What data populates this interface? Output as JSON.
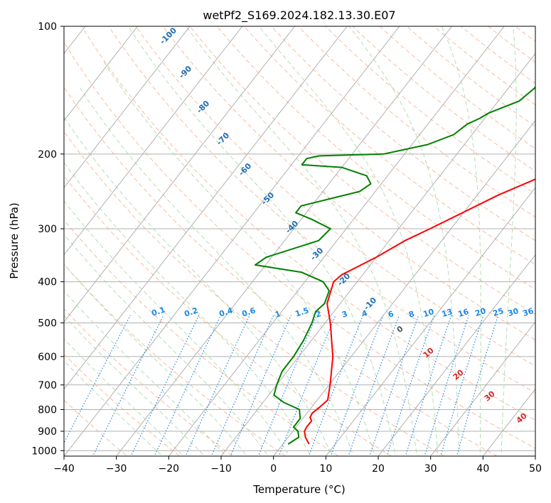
{
  "chart_data": {
    "type": "line",
    "title": "wetPf2_S169.2024.182.13.30.E07",
    "xlabel": "Temperature (°C)",
    "ylabel": "Pressure (hPa)",
    "xlim": [
      -40,
      50
    ],
    "ylim": [
      1030,
      100
    ],
    "y_scale": "log",
    "x_ticks": [
      -40,
      -30,
      -20,
      -10,
      0,
      10,
      20,
      30,
      40,
      50
    ],
    "y_ticks": [
      100,
      200,
      300,
      400,
      500,
      600,
      700,
      800,
      900,
      1000
    ],
    "grid": true,
    "series": [
      {
        "color": "#ff0000",
        "points": [
          {
            "p": 965,
            "t": 5.0
          },
          {
            "p": 930,
            "t": 3.3
          },
          {
            "p": 900,
            "t": 2.2
          },
          {
            "p": 880,
            "t": 2.0
          },
          {
            "p": 850,
            "t": 2.0
          },
          {
            "p": 835,
            "t": 1.2
          },
          {
            "p": 815,
            "t": 1.0
          },
          {
            "p": 790,
            "t": 1.5
          },
          {
            "p": 760,
            "t": 2.0
          },
          {
            "p": 700,
            "t": 0.2
          },
          {
            "p": 600,
            "t": -3.5
          },
          {
            "p": 500,
            "t": -9.0
          },
          {
            "p": 450,
            "t": -12.5
          },
          {
            "p": 400,
            "t": -14.5
          },
          {
            "p": 385,
            "t": -14.0
          },
          {
            "p": 350,
            "t": -10.0
          },
          {
            "p": 320,
            "t": -7.0
          },
          {
            "p": 300,
            "t": -4.0
          },
          {
            "p": 250,
            "t": 4.0
          },
          {
            "p": 220,
            "t": 11.0
          },
          {
            "p": 200,
            "t": 14.0
          },
          {
            "p": 170,
            "t": 19.0
          },
          {
            "p": 150,
            "t": 24.0
          },
          {
            "p": 130,
            "t": 28.0
          },
          {
            "p": 110,
            "t": 33.0
          },
          {
            "p": 100,
            "t": 35.0
          }
        ]
      },
      {
        "color": "#008000",
        "points": [
          {
            "p": 965,
            "t": 1.0
          },
          {
            "p": 930,
            "t": 2.0
          },
          {
            "p": 900,
            "t": 1.0
          },
          {
            "p": 880,
            "t": -0.5
          },
          {
            "p": 840,
            "t": -0.5
          },
          {
            "p": 800,
            "t": -2.0
          },
          {
            "p": 770,
            "t": -6.0
          },
          {
            "p": 740,
            "t": -9.0
          },
          {
            "p": 700,
            "t": -10.0
          },
          {
            "p": 650,
            "t": -11.0
          },
          {
            "p": 600,
            "t": -11.0
          },
          {
            "p": 550,
            "t": -11.5
          },
          {
            "p": 500,
            "t": -12.5
          },
          {
            "p": 470,
            "t": -13.5
          },
          {
            "p": 450,
            "t": -13.0
          },
          {
            "p": 420,
            "t": -14.0
          },
          {
            "p": 400,
            "t": -16.5
          },
          {
            "p": 380,
            "t": -22.0
          },
          {
            "p": 365,
            "t": -32.0
          },
          {
            "p": 350,
            "t": -31.0
          },
          {
            "p": 320,
            "t": -23.5
          },
          {
            "p": 300,
            "t": -23.0
          },
          {
            "p": 285,
            "t": -28.0
          },
          {
            "p": 275,
            "t": -32.0
          },
          {
            "p": 265,
            "t": -32.0
          },
          {
            "p": 245,
            "t": -23.0
          },
          {
            "p": 235,
            "t": -22.0
          },
          {
            "p": 225,
            "t": -24.0
          },
          {
            "p": 215,
            "t": -30.0
          },
          {
            "p": 212,
            "t": -38.0
          },
          {
            "p": 205,
            "t": -38.0
          },
          {
            "p": 202,
            "t": -36.0
          },
          {
            "p": 200,
            "t": -24.0
          },
          {
            "p": 190,
            "t": -17.0
          },
          {
            "p": 180,
            "t": -13.5
          },
          {
            "p": 170,
            "t": -12.5
          },
          {
            "p": 165,
            "t": -11.0
          },
          {
            "p": 160,
            "t": -10.0
          },
          {
            "p": 150,
            "t": -6.0
          },
          {
            "p": 140,
            "t": -5.0
          },
          {
            "p": 135,
            "t": -5.0
          },
          {
            "p": 125,
            "t": -5.0
          },
          {
            "p": 120,
            "t": -5.5
          },
          {
            "p": 115,
            "t": -5.5
          },
          {
            "p": 110,
            "t": -5.0
          },
          {
            "p": 105,
            "t": -4.0
          },
          {
            "p": 100,
            "t": -1.5
          }
        ]
      }
    ],
    "isotherm_labels": [
      "-100",
      "-90",
      "-80",
      "-70",
      "-60",
      "-50",
      "-40",
      "-30",
      "-20",
      "-10"
    ],
    "mixing_ratio_labels": [
      "0.1",
      "0.2",
      "0.4",
      "0.6",
      "1",
      "1.5",
      "2",
      "3",
      "4",
      "6",
      "8",
      "10",
      "13",
      "16",
      "20",
      "25",
      "30",
      "36"
    ],
    "moist_adiabat_labels": [
      "0",
      "10",
      "20",
      "30",
      "40"
    ],
    "colors": {
      "temperature": "#ff0000",
      "dewpoint": "#008000",
      "isobars_isotherms": "#b0b0b0",
      "dry_adiabats": "#f4a582",
      "moist_adiabats": "#a6d8a6",
      "mixing_ratio": "#1e88e5",
      "isotherm_labels": "#1f6eb4",
      "moist_adiabat_labels": "#d62728"
    }
  }
}
